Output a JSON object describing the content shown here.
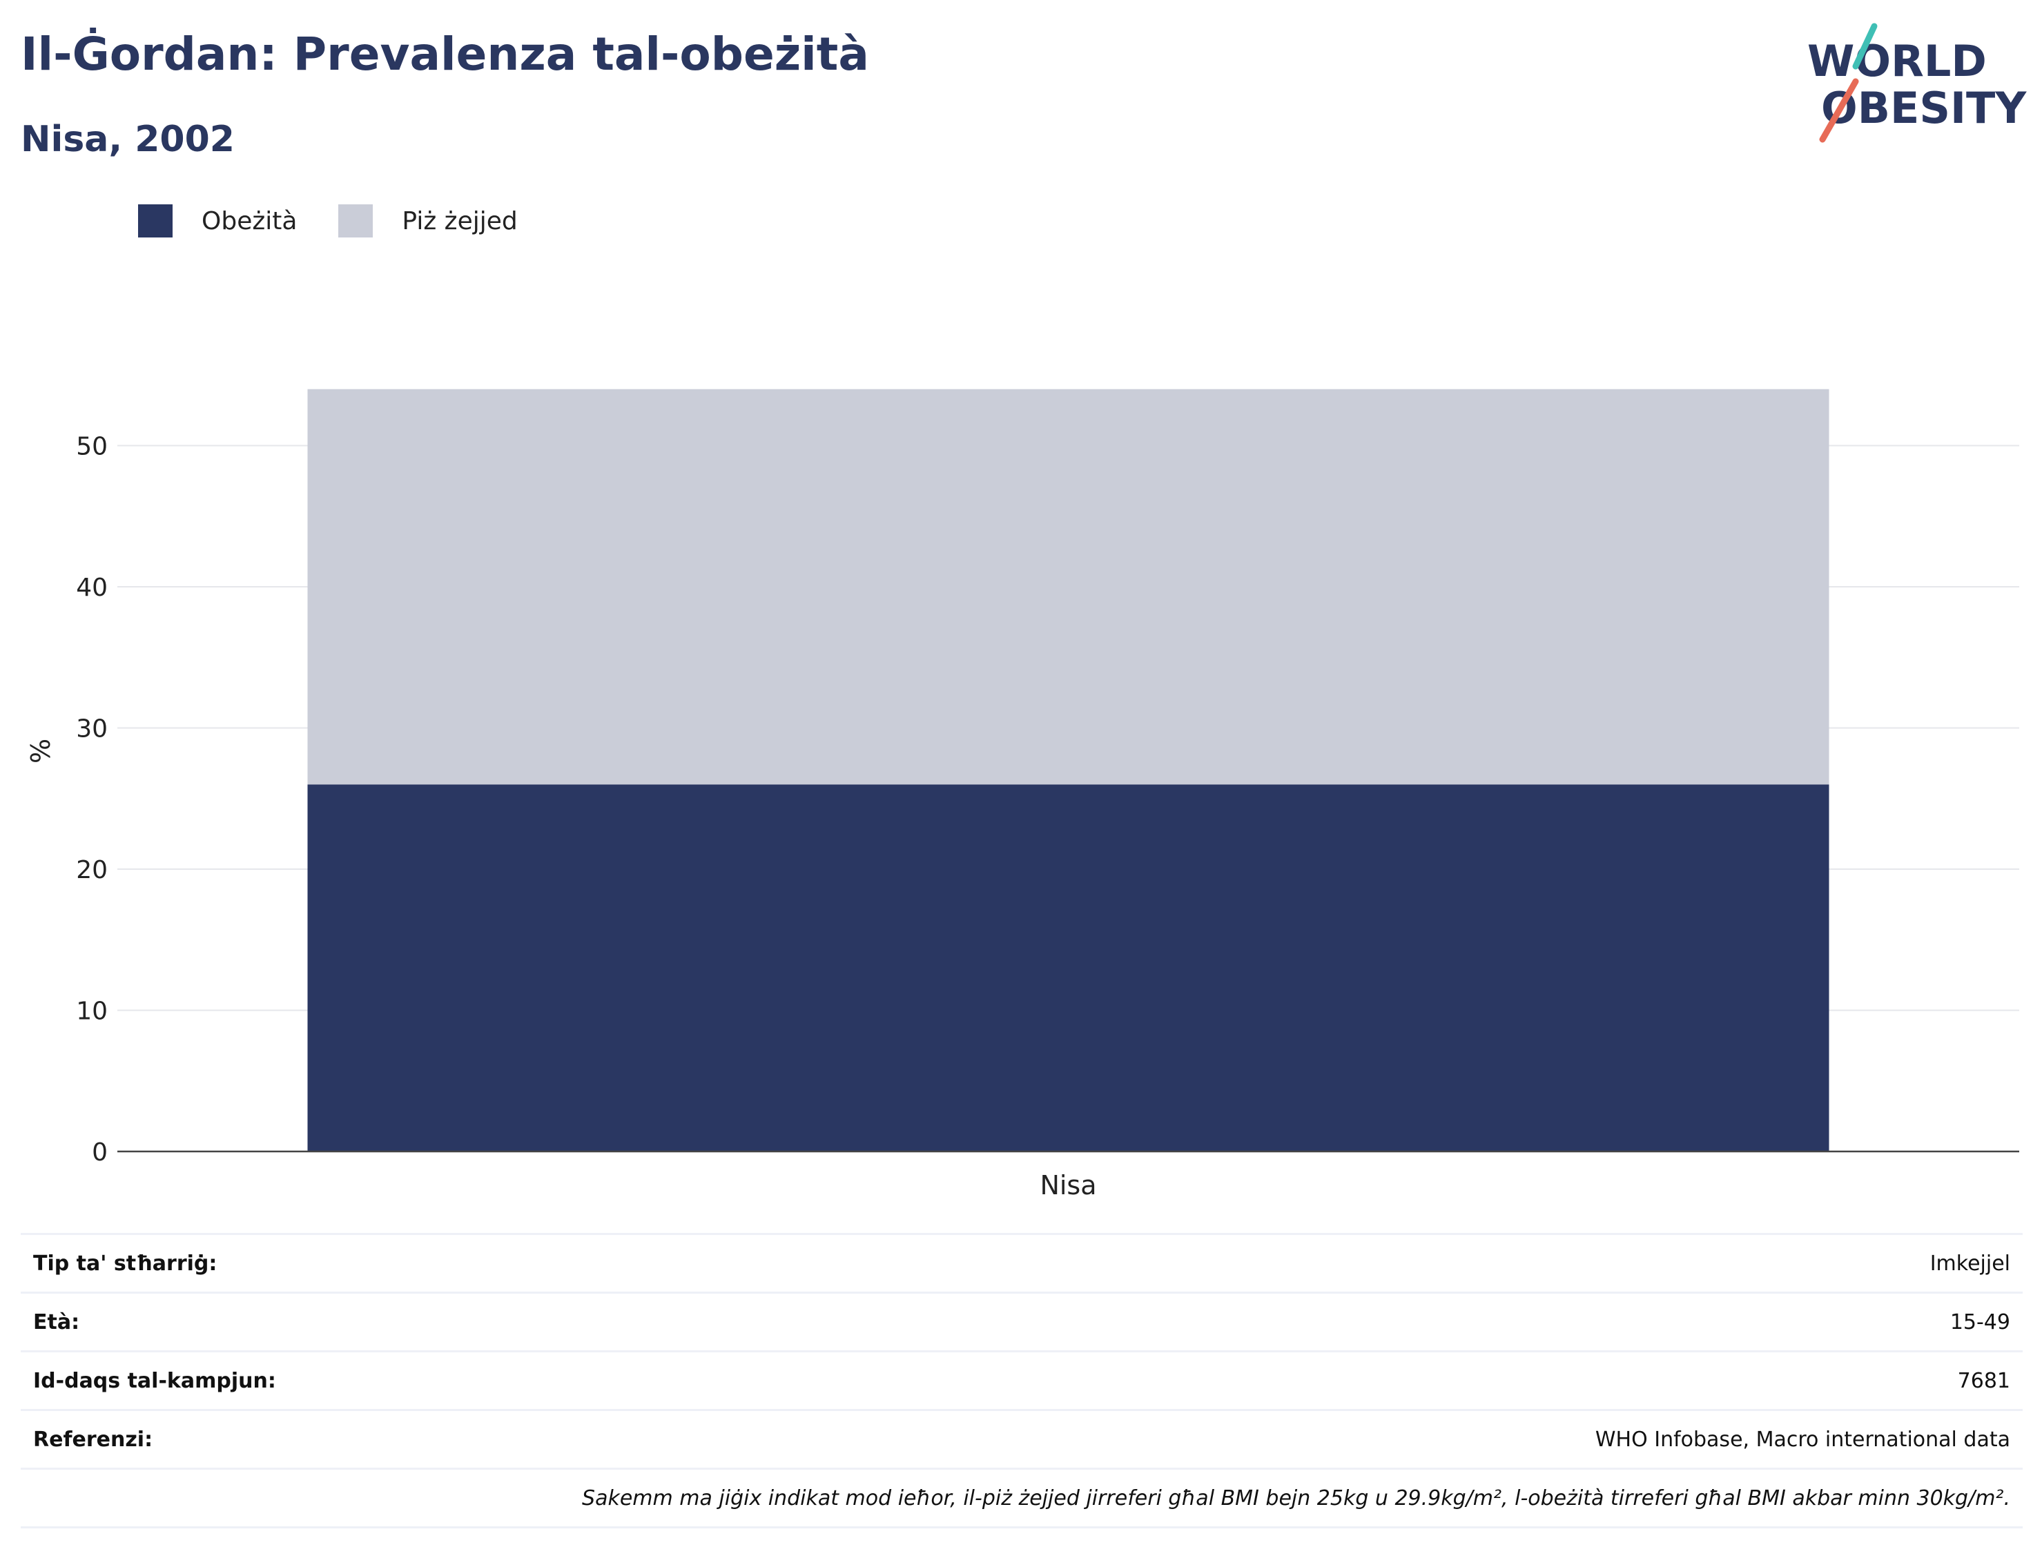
{
  "header": {
    "title": "Il-Ġordan: Prevalenza tal-obeżità",
    "subtitle": "Nisa, 2002"
  },
  "logo": {
    "line1": "WORLD",
    "line2": "OBESITY"
  },
  "legend": [
    {
      "label": "Obeżità",
      "color": "#2a3762"
    },
    {
      "label": "Piż żejjed",
      "color": "#cacdd8"
    }
  ],
  "chart_data": {
    "type": "bar",
    "stacked": true,
    "categories": [
      "Nisa"
    ],
    "series": [
      {
        "name": "Obeżità",
        "values": [
          26
        ],
        "color": "#2a3762"
      },
      {
        "name": "Piż żejjed",
        "values": [
          28
        ],
        "color": "#cacdd8"
      }
    ],
    "ylabel": "%",
    "yticks": [
      0,
      10,
      20,
      30,
      40,
      50
    ],
    "ylim": [
      0,
      56
    ],
    "grid": true,
    "legend_position": "top-left"
  },
  "info": {
    "rows": [
      {
        "key": "Tip ta' stħarriġ:",
        "value": "Imkejjel"
      },
      {
        "key": "Età:",
        "value": "15-49"
      },
      {
        "key": "Id-daqs tal-kampjun:",
        "value": "7681"
      },
      {
        "key": "Referenzi:",
        "value": "WHO Infobase, Macro international data"
      }
    ],
    "note": "Sakemm ma jiġix indikat mod ieħor, il-piż żejjed jirreferi għal BMI bejn 25kg u 29.9kg/m², l-obeżità tirreferi għal BMI akbar minn 30kg/m²."
  }
}
